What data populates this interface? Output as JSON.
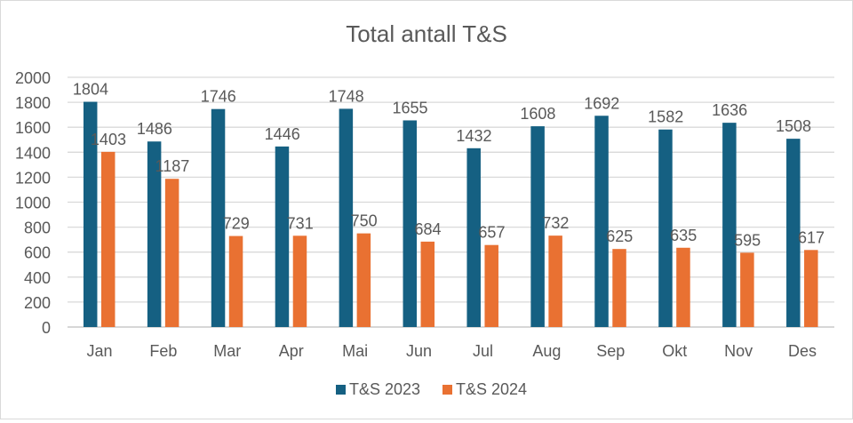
{
  "chart_data": {
    "type": "bar",
    "title": "Total antall T&S",
    "xlabel": "",
    "ylabel": "",
    "ylim": [
      0,
      2000
    ],
    "yticks": [
      0,
      200,
      400,
      600,
      800,
      1000,
      1200,
      1400,
      1600,
      1800,
      2000
    ],
    "grid": true,
    "legend": "bottom",
    "categories": [
      "Jan",
      "Feb",
      "Mar",
      "Apr",
      "Mai",
      "Jun",
      "Jul",
      "Aug",
      "Sep",
      "Okt",
      "Nov",
      "Des"
    ],
    "series": [
      {
        "name": "T&S 2023",
        "color": "#156082",
        "values": [
          1804,
          1486,
          1746,
          1446,
          1748,
          1655,
          1432,
          1608,
          1692,
          1582,
          1636,
          1508
        ]
      },
      {
        "name": "T&S 2024",
        "color": "#E97132",
        "values": [
          1403,
          1187,
          729,
          731,
          750,
          684,
          657,
          732,
          625,
          635,
          595,
          617
        ]
      }
    ]
  }
}
